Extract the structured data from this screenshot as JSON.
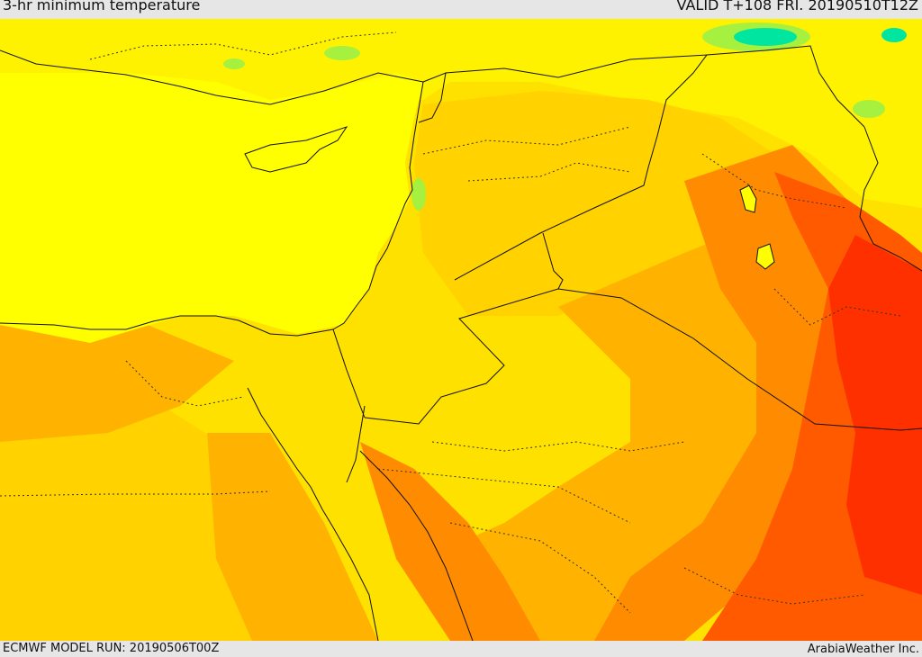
{
  "header": {
    "title": "3-hr minimum temperature",
    "valid": "VALID T+108 FRI. 20190510T12Z"
  },
  "footer": {
    "model_run": "ECMWF MODEL RUN: 20190506T00Z",
    "brand": "ArabiaWeather Inc."
  },
  "palette": {
    "sea": "#ffff00",
    "land_cool": "#fff200",
    "band_warm": "#ffd200",
    "band_warmer": "#ffb300",
    "band_hot": "#ff8c00",
    "band_hotter": "#ff5a00",
    "band_hottest": "#ff3000",
    "cold_green": "#a6f040",
    "cold_cyan": "#00e6a0",
    "coast_line": "#111111"
  }
}
